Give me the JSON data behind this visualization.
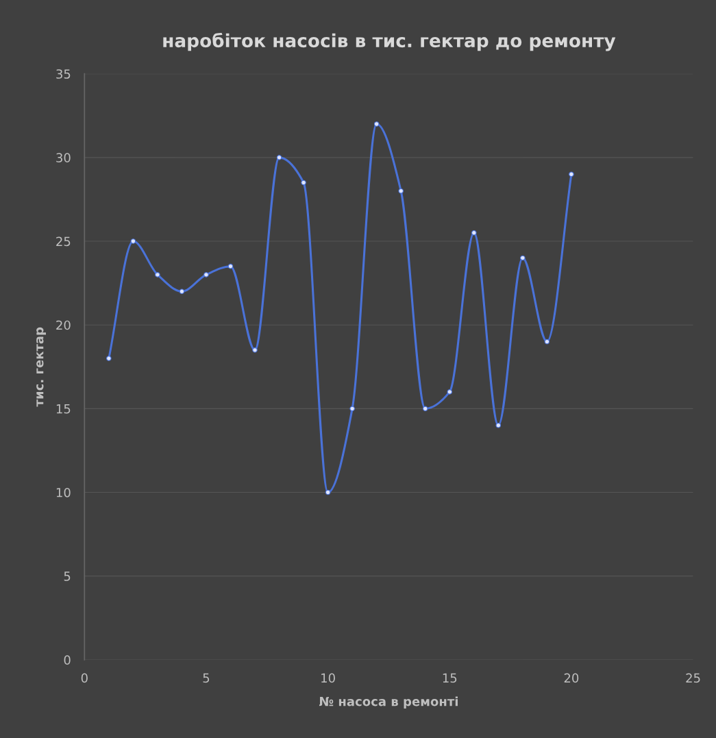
{
  "chart_data": {
    "type": "line",
    "title": "наробіток насосів в тис. гектар до ремонту",
    "xlabel": "№ насоса в ремонті",
    "ylabel": "тис. гектар",
    "x": [
      1,
      2,
      3,
      4,
      5,
      6,
      7,
      8,
      9,
      10,
      11,
      12,
      13,
      14,
      15,
      16,
      17,
      18,
      19,
      20
    ],
    "series": [
      {
        "color": "#4a72d8",
        "values": [
          18,
          25,
          23,
          22,
          23,
          23.5,
          18.5,
          30,
          28.5,
          10,
          15,
          32,
          28,
          15,
          16,
          25.5,
          14,
          24,
          19,
          29
        ]
      }
    ],
    "xlim": [
      0,
      25
    ],
    "xticks": [
      0,
      5,
      10,
      15,
      20,
      25
    ],
    "ylim": [
      0,
      35
    ],
    "yticks": [
      0,
      5,
      10,
      15,
      20,
      25,
      30,
      35
    ],
    "grid": "y",
    "marker": "circle",
    "line_style": "solid"
  }
}
